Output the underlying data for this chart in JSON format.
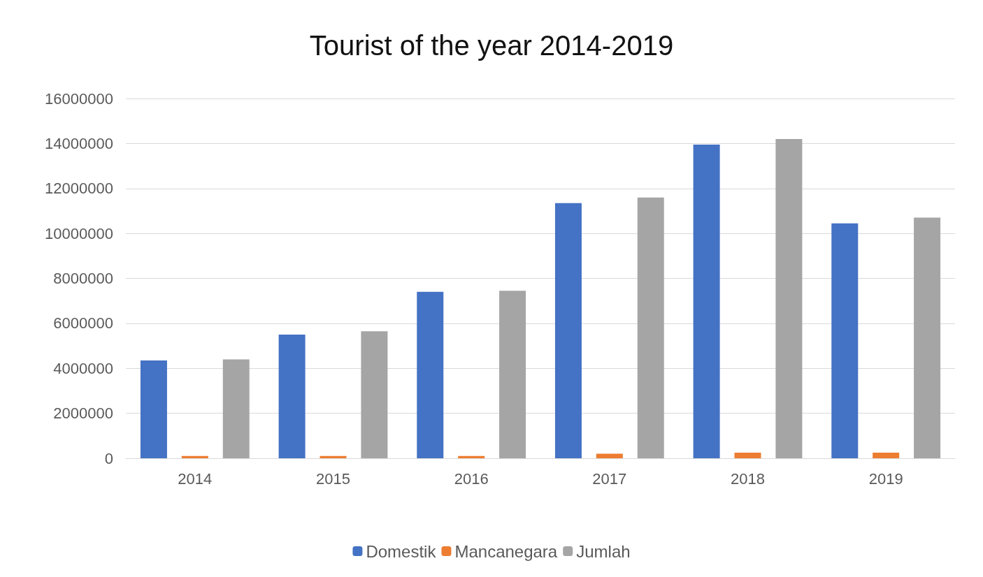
{
  "chart_data": {
    "type": "bar",
    "title": "Tourist of the year 2014-2019",
    "categories": [
      "2014",
      "2015",
      "2016",
      "2017",
      "2018",
      "2019"
    ],
    "series": [
      {
        "name": "Domestik",
        "color": "#4472c4",
        "values": [
          4350000,
          5500000,
          7400000,
          11350000,
          13950000,
          10450000
        ]
      },
      {
        "name": "Mancanegara",
        "color": "#ed7d31",
        "values": [
          100000,
          100000,
          100000,
          200000,
          250000,
          250000
        ]
      },
      {
        "name": "Jumlah",
        "color": "#a5a5a5",
        "values": [
          4400000,
          5650000,
          7450000,
          11600000,
          14200000,
          10700000
        ]
      }
    ],
    "ylim": [
      0,
      16000000
    ],
    "yticks": [
      0,
      2000000,
      4000000,
      6000000,
      8000000,
      10000000,
      12000000,
      14000000,
      16000000
    ],
    "grid": "y",
    "legend": "bottom"
  }
}
